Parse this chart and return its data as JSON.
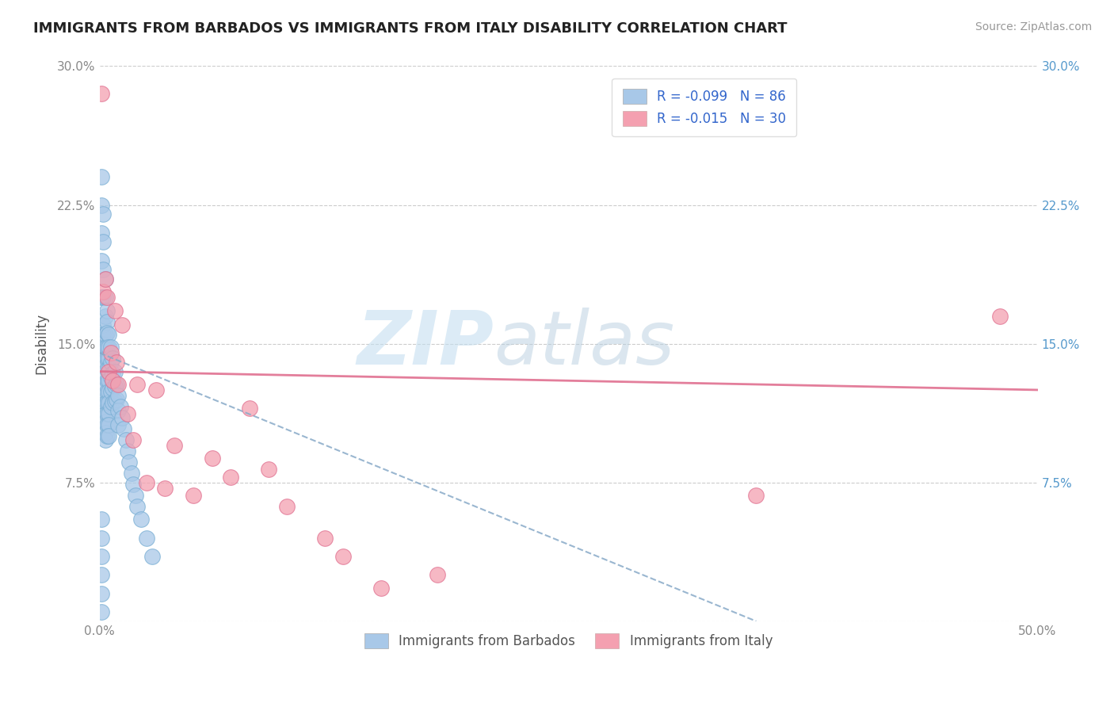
{
  "title": "IMMIGRANTS FROM BARBADOS VS IMMIGRANTS FROM ITALY DISABILITY CORRELATION CHART",
  "source": "Source: ZipAtlas.com",
  "ylabel": "Disability",
  "xlim": [
    0.0,
    0.5
  ],
  "ylim": [
    0.0,
    0.3
  ],
  "xticks": [
    0.0,
    0.1,
    0.2,
    0.3,
    0.4,
    0.5
  ],
  "yticks": [
    0.0,
    0.075,
    0.15,
    0.225,
    0.3
  ],
  "xticklabels": [
    "0.0%",
    "",
    "",
    "",
    "",
    "50.0%"
  ],
  "yticklabels_left": [
    "",
    "7.5%",
    "15.0%",
    "22.5%",
    "30.0%"
  ],
  "yticklabels_right": [
    "",
    "7.5%",
    "15.0%",
    "22.5%",
    "30.0%"
  ],
  "barbados_color": "#a8c8e8",
  "italy_color": "#f4a0b0",
  "barbados_R": -0.099,
  "barbados_N": 86,
  "italy_R": -0.015,
  "italy_N": 30,
  "watermark_zip": "ZIP",
  "watermark_atlas": "atlas",
  "legend_R_label_1": "R = -0.099   N = 86",
  "legend_R_label_2": "R = -0.015   N = 30",
  "legend_bottom_1": "Immigrants from Barbados",
  "legend_bottom_2": "Immigrants from Italy",
  "barbados_x": [
    0.001,
    0.001,
    0.001,
    0.001,
    0.001,
    0.002,
    0.002,
    0.002,
    0.002,
    0.002,
    0.002,
    0.002,
    0.002,
    0.003,
    0.003,
    0.003,
    0.003,
    0.003,
    0.003,
    0.003,
    0.003,
    0.003,
    0.003,
    0.003,
    0.003,
    0.003,
    0.003,
    0.003,
    0.004,
    0.004,
    0.004,
    0.004,
    0.004,
    0.004,
    0.004,
    0.004,
    0.004,
    0.004,
    0.004,
    0.004,
    0.005,
    0.005,
    0.005,
    0.005,
    0.005,
    0.005,
    0.005,
    0.005,
    0.005,
    0.005,
    0.006,
    0.006,
    0.006,
    0.006,
    0.006,
    0.007,
    0.007,
    0.007,
    0.007,
    0.008,
    0.008,
    0.008,
    0.009,
    0.009,
    0.01,
    0.01,
    0.01,
    0.011,
    0.012,
    0.013,
    0.014,
    0.015,
    0.016,
    0.017,
    0.018,
    0.019,
    0.02,
    0.022,
    0.025,
    0.028,
    0.001,
    0.001,
    0.001,
    0.001,
    0.001,
    0.001
  ],
  "barbados_y": [
    0.24,
    0.225,
    0.21,
    0.195,
    0.175,
    0.22,
    0.205,
    0.19,
    0.175,
    0.16,
    0.155,
    0.15,
    0.145,
    0.185,
    0.175,
    0.165,
    0.155,
    0.148,
    0.142,
    0.138,
    0.132,
    0.128,
    0.122,
    0.118,
    0.112,
    0.108,
    0.102,
    0.098,
    0.168,
    0.162,
    0.156,
    0.148,
    0.142,
    0.136,
    0.13,
    0.124,
    0.118,
    0.112,
    0.106,
    0.1,
    0.155,
    0.148,
    0.142,
    0.136,
    0.13,
    0.124,
    0.118,
    0.112,
    0.106,
    0.1,
    0.148,
    0.14,
    0.132,
    0.124,
    0.116,
    0.142,
    0.134,
    0.126,
    0.118,
    0.135,
    0.127,
    0.119,
    0.128,
    0.12,
    0.122,
    0.114,
    0.106,
    0.116,
    0.11,
    0.104,
    0.098,
    0.092,
    0.086,
    0.08,
    0.074,
    0.068,
    0.062,
    0.055,
    0.045,
    0.035,
    0.055,
    0.045,
    0.035,
    0.025,
    0.015,
    0.005
  ],
  "italy_x": [
    0.001,
    0.002,
    0.003,
    0.004,
    0.005,
    0.006,
    0.007,
    0.008,
    0.009,
    0.01,
    0.012,
    0.015,
    0.018,
    0.02,
    0.025,
    0.03,
    0.035,
    0.04,
    0.05,
    0.06,
    0.07,
    0.08,
    0.09,
    0.1,
    0.12,
    0.13,
    0.15,
    0.18,
    0.35,
    0.48
  ],
  "italy_y": [
    0.285,
    0.178,
    0.185,
    0.175,
    0.135,
    0.145,
    0.13,
    0.168,
    0.14,
    0.128,
    0.16,
    0.112,
    0.098,
    0.128,
    0.075,
    0.125,
    0.072,
    0.095,
    0.068,
    0.088,
    0.078,
    0.115,
    0.082,
    0.062,
    0.045,
    0.035,
    0.018,
    0.025,
    0.068,
    0.165
  ],
  "italy_line_x": [
    0.0,
    0.5
  ],
  "italy_line_y": [
    0.135,
    0.125
  ],
  "barbados_line_x": [
    0.0,
    0.35
  ],
  "barbados_line_y": [
    0.145,
    0.0
  ]
}
